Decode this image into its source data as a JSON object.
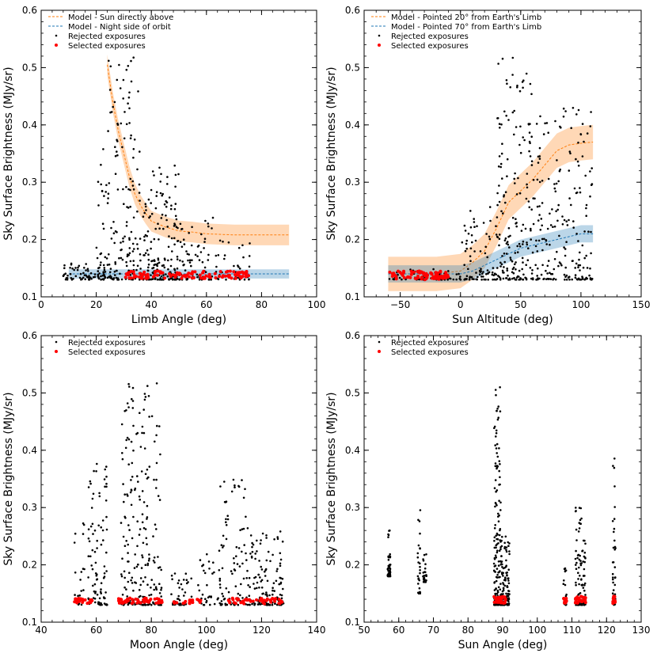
{
  "figure": {
    "panels_count": 4
  },
  "chart_data": [
    {
      "type": "scatter",
      "xlabel": "Limb Angle (deg)",
      "ylabel": "Sky Surface Brightness (MJy/sr)",
      "xlim": [
        0,
        100
      ],
      "ylim": [
        0.1,
        0.6
      ],
      "xticks": [
        0,
        20,
        40,
        60,
        80,
        100
      ],
      "yticks": [
        0.1,
        0.2,
        0.3,
        0.4,
        0.5,
        0.6
      ],
      "legend": [
        "Model - Sun directly above",
        "Model - Night side of orbit",
        "Rejected exposures",
        "Selected exposures"
      ],
      "models": [
        {
          "name": "Model - Sun directly above",
          "color": "#ff7f0e",
          "x": [
            24,
            26,
            28,
            30,
            32,
            34,
            36,
            38,
            40,
            45,
            50,
            55,
            60,
            70,
            80,
            90
          ],
          "y": [
            0.505,
            0.44,
            0.39,
            0.35,
            0.31,
            0.28,
            0.26,
            0.245,
            0.232,
            0.222,
            0.215,
            0.213,
            0.21,
            0.208,
            0.208,
            0.208
          ],
          "band": 0.018
        },
        {
          "name": "Model - Night side of orbit",
          "color": "#1f77b4",
          "x": [
            10,
            20,
            30,
            40,
            50,
            60,
            70,
            80,
            90
          ],
          "y": [
            0.14,
            0.14,
            0.14,
            0.14,
            0.14,
            0.14,
            0.14,
            0.14,
            0.14
          ],
          "band": 0.008
        }
      ],
      "rejected_clusters": [
        {
          "x": [
            20,
            24
          ],
          "y": [
            0.13,
            0.36
          ],
          "n": 40
        },
        {
          "x": [
            24,
            36
          ],
          "y": [
            0.13,
            0.52
          ],
          "n": 150
        },
        {
          "x": [
            36,
            50
          ],
          "y": [
            0.13,
            0.33
          ],
          "n": 170
        },
        {
          "x": [
            50,
            66
          ],
          "y": [
            0.13,
            0.25
          ],
          "n": 90
        },
        {
          "x": [
            66,
            76
          ],
          "y": [
            0.13,
            0.2
          ],
          "n": 25
        },
        {
          "x": [
            8,
            22
          ],
          "y": [
            0.13,
            0.16
          ],
          "n": 60
        }
      ],
      "selected_clusters": [
        {
          "x": [
            30,
            76
          ],
          "y": [
            0.132,
            0.145
          ],
          "n": 120
        }
      ]
    },
    {
      "type": "scatter",
      "xlabel": "Sun Altitude (deg)",
      "ylabel": "Sky Surface Brightness (MJy/sr)",
      "xlim": [
        -80,
        150
      ],
      "ylim": [
        0.1,
        0.6
      ],
      "xticks": [
        -50,
        0,
        50,
        100,
        150
      ],
      "yticks": [
        0.1,
        0.2,
        0.3,
        0.4,
        0.5,
        0.6
      ],
      "legend": [
        "Model - Pointed 20° from Earth's Limb",
        "Model - Pointed 70° from Earth's Limb",
        "Rejected exposures",
        "Selected exposures"
      ],
      "models": [
        {
          "name": "Model - Pointed 20° from Earth's Limb",
          "color": "#ff7f0e",
          "x": [
            -60,
            -40,
            -20,
            0,
            10,
            20,
            30,
            40,
            50,
            60,
            70,
            80,
            90,
            100,
            110
          ],
          "y": [
            0.14,
            0.14,
            0.14,
            0.145,
            0.16,
            0.18,
            0.22,
            0.265,
            0.285,
            0.305,
            0.33,
            0.355,
            0.365,
            0.368,
            0.37
          ],
          "band": 0.03
        },
        {
          "name": "Model - Pointed 70° from Earth's Limb",
          "color": "#1f77b4",
          "x": [
            -60,
            -40,
            -20,
            0,
            10,
            20,
            30,
            40,
            50,
            60,
            70,
            80,
            90,
            100,
            110
          ],
          "y": [
            0.14,
            0.14,
            0.14,
            0.14,
            0.145,
            0.155,
            0.165,
            0.175,
            0.185,
            0.19,
            0.195,
            0.2,
            0.205,
            0.21,
            0.21
          ],
          "band": 0.015
        }
      ],
      "rejected_clusters": [
        {
          "x": [
            -60,
            0
          ],
          "y": [
            0.13,
            0.15
          ],
          "n": 60
        },
        {
          "x": [
            0,
            30
          ],
          "y": [
            0.13,
            0.26
          ],
          "n": 80
        },
        {
          "x": [
            30,
            60
          ],
          "y": [
            0.13,
            0.52
          ],
          "n": 180
        },
        {
          "x": [
            60,
            110
          ],
          "y": [
            0.13,
            0.43
          ],
          "n": 200
        }
      ],
      "selected_clusters": [
        {
          "x": [
            -60,
            -10
          ],
          "y": [
            0.13,
            0.145
          ],
          "n": 80
        }
      ]
    },
    {
      "type": "scatter",
      "xlabel": "Moon Angle (deg)",
      "ylabel": "Sky Surface Brightness (MJy/sr)",
      "xlim": [
        40,
        140
      ],
      "ylim": [
        0.1,
        0.6
      ],
      "xticks": [
        40,
        60,
        80,
        100,
        120,
        140
      ],
      "yticks": [
        0.1,
        0.2,
        0.3,
        0.4,
        0.5,
        0.6
      ],
      "legend": [
        "Rejected exposures",
        "Selected exposures"
      ],
      "models": [],
      "rejected_clusters": [
        {
          "x": [
            52,
            56
          ],
          "y": [
            0.13,
            0.31
          ],
          "n": 20
        },
        {
          "x": [
            57,
            64
          ],
          "y": [
            0.13,
            0.39
          ],
          "n": 90
        },
        {
          "x": [
            69,
            84
          ],
          "y": [
            0.13,
            0.52
          ],
          "n": 220
        },
        {
          "x": [
            87,
            95
          ],
          "y": [
            0.13,
            0.19
          ],
          "n": 40
        },
        {
          "x": [
            97,
            103
          ],
          "y": [
            0.13,
            0.22
          ],
          "n": 30
        },
        {
          "x": [
            104,
            115
          ],
          "y": [
            0.13,
            0.35
          ],
          "n": 100
        },
        {
          "x": [
            115,
            128
          ],
          "y": [
            0.13,
            0.26
          ],
          "n": 130
        }
      ],
      "selected_clusters": [
        {
          "x": [
            52,
            60
          ],
          "y": [
            0.132,
            0.142
          ],
          "n": 30
        },
        {
          "x": [
            68,
            84
          ],
          "y": [
            0.133,
            0.142
          ],
          "n": 50
        },
        {
          "x": [
            88,
            98
          ],
          "y": [
            0.132,
            0.14
          ],
          "n": 20
        },
        {
          "x": [
            108,
            128
          ],
          "y": [
            0.132,
            0.142
          ],
          "n": 50
        }
      ]
    },
    {
      "type": "scatter",
      "xlabel": "Sun Angle (deg)",
      "ylabel": "Sky Surface Brightness (MJy/sr)",
      "xlim": [
        50,
        130
      ],
      "ylim": [
        0.1,
        0.6
      ],
      "xticks": [
        50,
        60,
        70,
        80,
        90,
        100,
        110,
        120,
        130
      ],
      "yticks": [
        0.1,
        0.2,
        0.3,
        0.4,
        0.5,
        0.6
      ],
      "legend": [
        "Rejected exposures",
        "Selected exposures"
      ],
      "models": [],
      "rejected_clusters": [
        {
          "x": [
            56.8,
            57.6
          ],
          "y": [
            0.18,
            0.26
          ],
          "n": 50
        },
        {
          "x": [
            65.5,
            66.2
          ],
          "y": [
            0.15,
            0.32
          ],
          "n": 30
        },
        {
          "x": [
            67,
            68
          ],
          "y": [
            0.17,
            0.22
          ],
          "n": 30
        },
        {
          "x": [
            87.5,
            89.5
          ],
          "y": [
            0.13,
            0.52
          ],
          "n": 150
        },
        {
          "x": [
            89.5,
            92
          ],
          "y": [
            0.13,
            0.25
          ],
          "n": 120
        },
        {
          "x": [
            107.5,
            108.5
          ],
          "y": [
            0.13,
            0.2
          ],
          "n": 20
        },
        {
          "x": [
            111,
            114
          ],
          "y": [
            0.13,
            0.3
          ],
          "n": 100
        },
        {
          "x": [
            121.8,
            122.6
          ],
          "y": [
            0.13,
            0.39
          ],
          "n": 40
        }
      ],
      "selected_clusters": [
        {
          "x": [
            87.5,
            91
          ],
          "y": [
            0.133,
            0.145
          ],
          "n": 40
        },
        {
          "x": [
            107.5,
            108.5
          ],
          "y": [
            0.133,
            0.142
          ],
          "n": 15
        },
        {
          "x": [
            111,
            114
          ],
          "y": [
            0.133,
            0.145
          ],
          "n": 30
        },
        {
          "x": [
            121.8,
            122.6
          ],
          "y": [
            0.133,
            0.145
          ],
          "n": 15
        }
      ]
    }
  ]
}
